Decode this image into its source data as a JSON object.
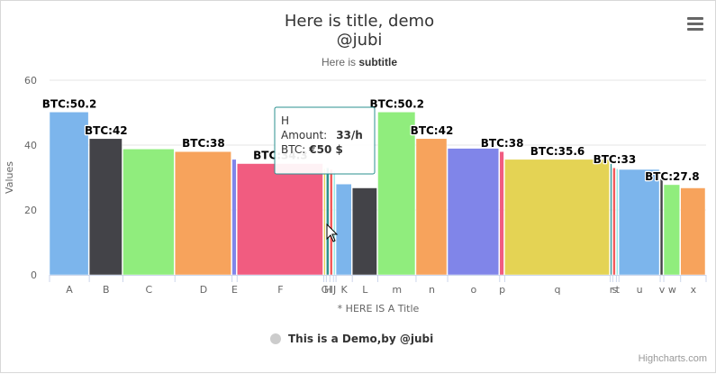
{
  "chart_data": {
    "type": "bar",
    "title": "Here is title, demo",
    "title_line2": "@jubi",
    "subtitle_prefix": "Here is ",
    "subtitle_bold": "subtitle",
    "xlabel": "* HERE IS A Title",
    "ylabel": "Values",
    "ylim": [
      0,
      60
    ],
    "yticks": [
      0,
      20,
      40,
      60
    ],
    "grid": true,
    "variable_width": true,
    "legend_position": "bottom-center",
    "legend": [
      {
        "name": "This is a Demo,by @jubi",
        "color": "#cccccc"
      }
    ],
    "credits": "Highcharts.com",
    "data_label_prefix": "BTC:",
    "categories": [
      "A",
      "B",
      "C",
      "D",
      "E",
      "F",
      "G",
      "H",
      "I",
      "J",
      "K",
      "L",
      "m",
      "n",
      "o",
      "p",
      "q",
      "r",
      "s",
      "t",
      "u",
      "v",
      "w",
      "x"
    ],
    "values": [
      50.2,
      42,
      38.8,
      38,
      35.6,
      34.3,
      32.8,
      33,
      32.5,
      32,
      28,
      26.8,
      50.2,
      42,
      39,
      38,
      35.6,
      34.3,
      33,
      32.7,
      32.5,
      29.5,
      27.8,
      26.8
    ],
    "widths": [
      7.8,
      6.6,
      10.2,
      11.2,
      1.0,
      17.0,
      0.5,
      0.7,
      0.7,
      0.5,
      3.2,
      5.0,
      7.5,
      6.2,
      10.2,
      1.0,
      20.7,
      0.5,
      0.7,
      0.5,
      8.1,
      0.7,
      3.3,
      5.0
    ],
    "colors": [
      "#7cb5ec",
      "#434348",
      "#90ed7d",
      "#f7a35c",
      "#8085e9",
      "#f15c80",
      "#e4d354",
      "#2b908f",
      "#f45b5b",
      "#91e8e1",
      "#7cb5ec",
      "#434348",
      "#90ed7d",
      "#f7a35c",
      "#8085e9",
      "#f15c80",
      "#e4d354",
      "#2b908f",
      "#f45b5b",
      "#91e8e1",
      "#7cb5ec",
      "#434348",
      "#90ed7d",
      "#f7a35c"
    ],
    "labeled_points": [
      0,
      1,
      3,
      5,
      12,
      13,
      15,
      16,
      18,
      22
    ],
    "tooltip": {
      "category": "H",
      "amount_label": "Amount:",
      "amount_value": "33/h",
      "btc_label": "BTC:",
      "btc_value": "€50 $",
      "border_color": "#2b908f"
    }
  },
  "icons": {
    "menu": "hamburger-menu-icon",
    "cursor": "mouse-cursor-icon"
  }
}
